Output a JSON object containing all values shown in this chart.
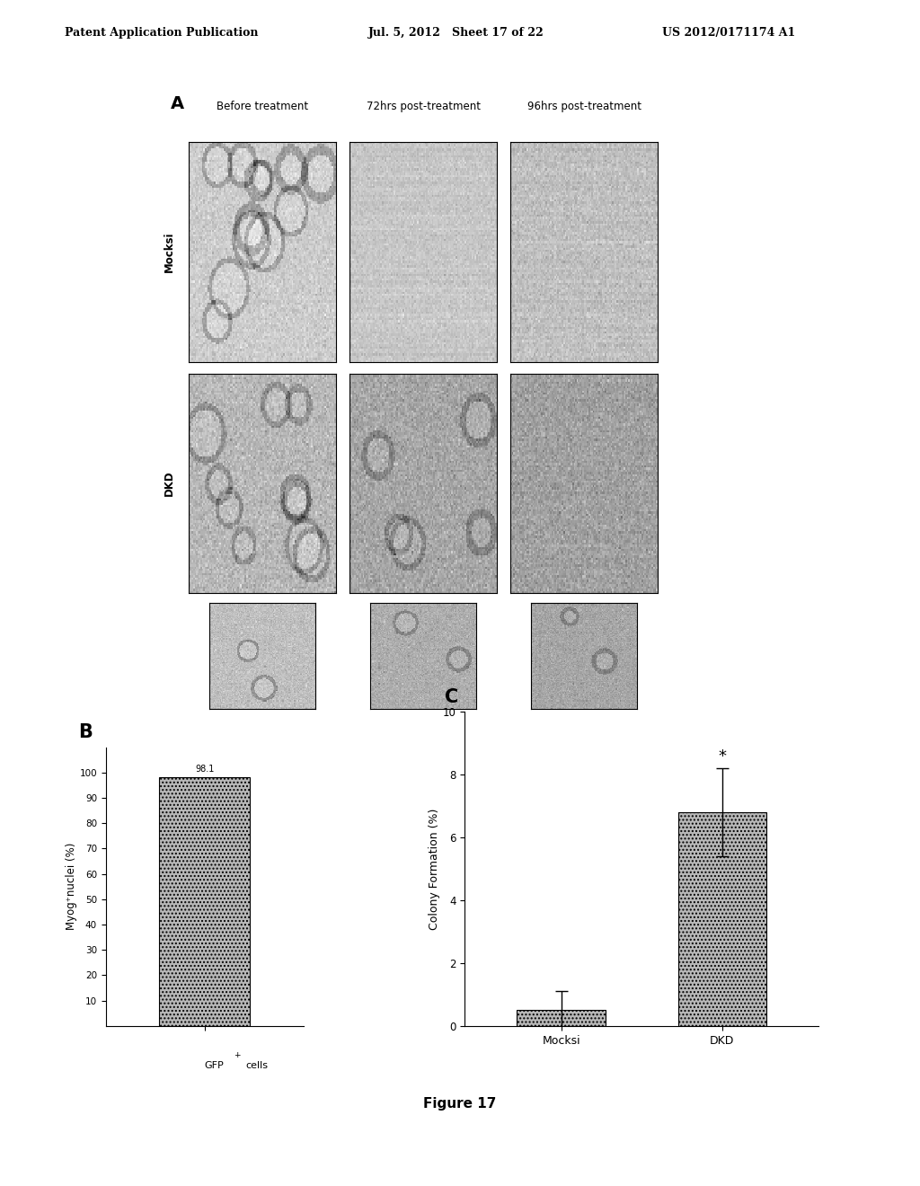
{
  "header_left": "Patent Application Publication",
  "header_mid": "Jul. 5, 2012   Sheet 17 of 22",
  "header_right": "US 2012/0171174 A1",
  "panel_A_label": "A",
  "panel_B_label": "B",
  "panel_C_label": "C",
  "col_labels": [
    "Before treatment",
    "72hrs post-treatment",
    "96hrs post-treatment"
  ],
  "row_label_mocksi": "Mocksi",
  "row_label_dkd": "DKD",
  "panel_B_bar_value": 98.1,
  "panel_B_bar_label": "98.1",
  "panel_B_ylabel": "Myog⁺nuclei (%)",
  "panel_B_yticks": [
    10,
    20,
    30,
    40,
    50,
    60,
    70,
    80,
    90,
    100
  ],
  "panel_B_bar_color": "#b8b8b8",
  "panel_C_categories": [
    "Mocksi",
    "DKD"
  ],
  "panel_C_values": [
    0.5,
    6.8
  ],
  "panel_C_errors": [
    0.6,
    1.4
  ],
  "panel_C_ylabel": "Colony Formation (%)",
  "panel_C_ylim": [
    0,
    10
  ],
  "panel_C_yticks": [
    0,
    2,
    4,
    6,
    8,
    10
  ],
  "panel_C_bar_color": "#b8b8b8",
  "panel_C_significance": "*",
  "figure_caption": "Figure 17",
  "bg_color": "#ffffff",
  "font_color": "#000000"
}
